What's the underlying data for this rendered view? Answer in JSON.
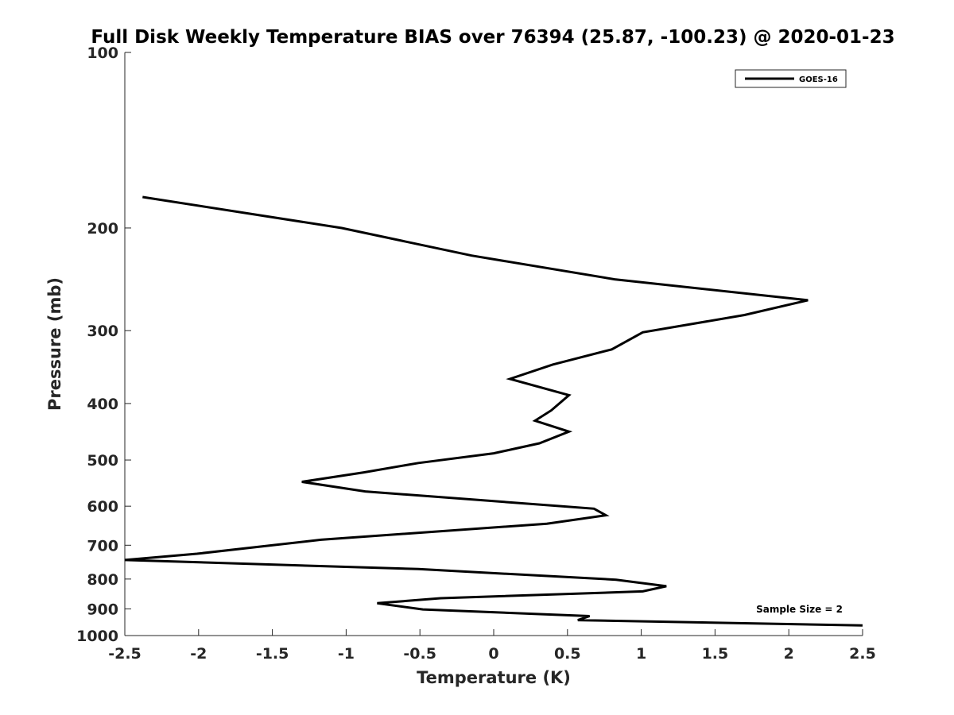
{
  "chart_data": {
    "type": "line",
    "title": "Full Disk Weekly Temperature BIAS over 76394 (25.87, -100.23) @ 2020-01-23",
    "xlabel": "Temperature (K)",
    "ylabel": "Pressure (mb)",
    "xlim": [
      -2.5,
      2.5
    ],
    "ylim": [
      100,
      1000
    ],
    "y_scale": "log",
    "y_reversed": true,
    "grid": false,
    "legend_position": "top-right",
    "x_ticks": [
      "-2.5",
      "-2",
      "-1.5",
      "-1",
      "-0.5",
      "0",
      "0.5",
      "1",
      "1.5",
      "2",
      "2.5"
    ],
    "y_ticks": [
      "100",
      "200",
      "300",
      "400",
      "500",
      "600",
      "700",
      "800",
      "900",
      "1000"
    ],
    "annotation": "Sample Size = 2",
    "series": [
      {
        "name": "GOES-16",
        "color": "#000000",
        "points": [
          [
            -2.38,
            177
          ],
          [
            -1.03,
            200
          ],
          [
            -0.15,
            223
          ],
          [
            0.82,
            245
          ],
          [
            2.13,
            266
          ],
          [
            1.7,
            282
          ],
          [
            1.01,
            302
          ],
          [
            0.8,
            323
          ],
          [
            0.4,
            343
          ],
          [
            0.11,
            363
          ],
          [
            0.51,
            387
          ],
          [
            0.39,
            411
          ],
          [
            0.28,
            428
          ],
          [
            0.51,
            447
          ],
          [
            0.31,
            468
          ],
          [
            0.0,
            487
          ],
          [
            -0.51,
            506
          ],
          [
            -0.88,
            525
          ],
          [
            -1.3,
            545
          ],
          [
            -0.87,
            566
          ],
          [
            0.68,
            606
          ],
          [
            0.76,
            622
          ],
          [
            0.36,
            643
          ],
          [
            -1.17,
            685
          ],
          [
            -2.01,
            724
          ],
          [
            -2.5,
            742
          ],
          [
            -0.51,
            769
          ],
          [
            0.83,
            802
          ],
          [
            1.17,
            823
          ],
          [
            1.01,
            840
          ],
          [
            -0.36,
            863
          ],
          [
            -0.79,
            880
          ],
          [
            -0.48,
            902
          ],
          [
            0.65,
            926
          ],
          [
            0.57,
            941
          ],
          [
            2.5,
            961
          ]
        ]
      }
    ]
  }
}
